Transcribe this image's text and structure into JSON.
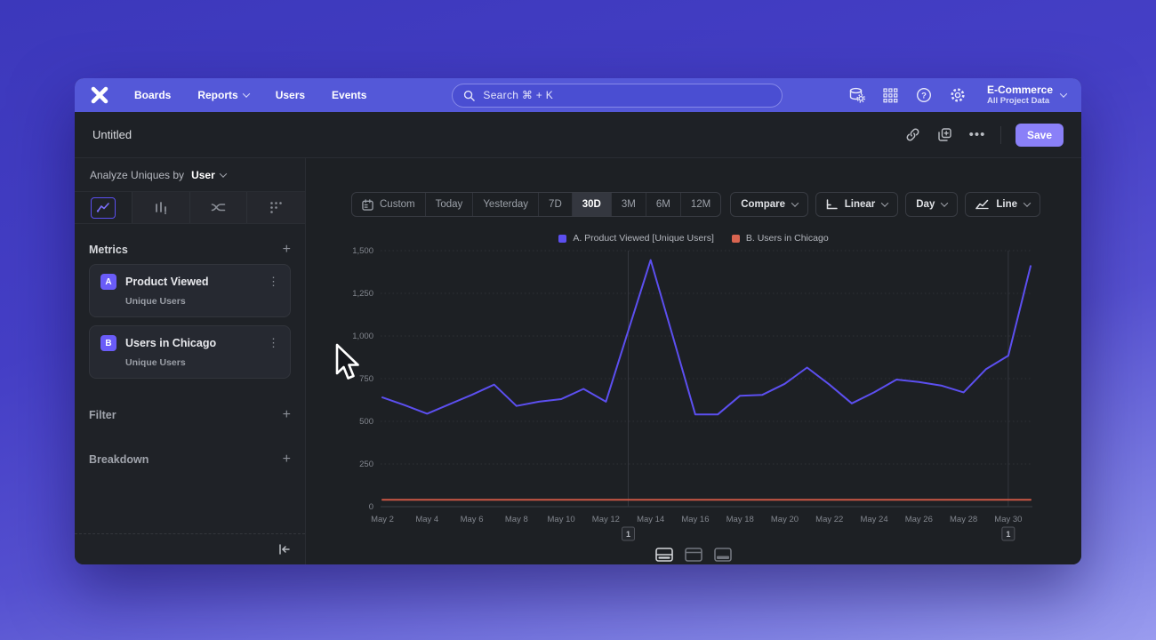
{
  "nav": {
    "items": [
      "Boards",
      "Reports",
      "Users",
      "Events"
    ],
    "search": {
      "placeholder": "Search  ⌘ + K"
    },
    "project": {
      "name": "E-Commerce",
      "subtitle": "All Project Data"
    }
  },
  "header": {
    "title": "Untitled",
    "save_label": "Save"
  },
  "sidebar": {
    "analyze": {
      "prefix": "Analyze Uniques by",
      "value": "User"
    },
    "sections": {
      "metrics": "Metrics",
      "filter": "Filter",
      "breakdown": "Breakdown"
    },
    "metrics": [
      {
        "badge": "A",
        "title": "Product Viewed",
        "subtitle": "Unique Users"
      },
      {
        "badge": "B",
        "title": "Users in Chicago",
        "subtitle": "Unique Users"
      }
    ]
  },
  "toolbar": {
    "ranges": [
      "Custom",
      "Today",
      "Yesterday",
      "7D",
      "30D",
      "3M",
      "6M",
      "12M"
    ],
    "selected_range": "30D",
    "compare": "Compare",
    "scale": "Linear",
    "interval": "Day",
    "chart_type": "Line"
  },
  "legend": [
    {
      "label": "A. Product Viewed [Unique Users]",
      "color": "#5c4ff0"
    },
    {
      "label": "B. Users in Chicago",
      "color": "#d96450"
    }
  ],
  "annotations": [
    {
      "label": "1",
      "x": "May 13"
    },
    {
      "label": "1",
      "x": "May 30"
    }
  ],
  "chart_data": {
    "type": "line",
    "title": "",
    "xlabel": "",
    "ylabel": "",
    "x": [
      "May 2",
      "May 3",
      "May 4",
      "May 5",
      "May 6",
      "May 7",
      "May 8",
      "May 9",
      "May 10",
      "May 11",
      "May 12",
      "May 13",
      "May 14",
      "May 15",
      "May 16",
      "May 17",
      "May 18",
      "May 19",
      "May 20",
      "May 21",
      "May 22",
      "May 23",
      "May 24",
      "May 25",
      "May 26",
      "May 27",
      "May 28",
      "May 29",
      "May 30",
      "May 31"
    ],
    "x_tick_labels": [
      "May 2",
      "May 4",
      "May 6",
      "May 8",
      "May 10",
      "May 12",
      "May 14",
      "May 16",
      "May 18",
      "May 20",
      "May 22",
      "May 24",
      "May 26",
      "May 28",
      "May 30"
    ],
    "series": [
      {
        "name": "A. Product Viewed [Unique Users]",
        "color": "#5c4ff0",
        "values": [
          640,
          595,
          545,
          600,
          655,
          715,
          590,
          615,
          630,
          690,
          615,
          1030,
          1445,
          995,
          540,
          540,
          650,
          655,
          720,
          815,
          715,
          605,
          670,
          745,
          730,
          710,
          670,
          805,
          885,
          1410
        ]
      },
      {
        "name": "B. Users in Chicago",
        "color": "#cc5744",
        "values": [
          40,
          40,
          40,
          40,
          40,
          40,
          40,
          40,
          40,
          40,
          40,
          40,
          40,
          40,
          40,
          40,
          40,
          40,
          40,
          40,
          40,
          40,
          40,
          40,
          40,
          40,
          40,
          40,
          40,
          40
        ]
      }
    ],
    "ylim": [
      0,
      1500
    ],
    "y_ticks": [
      0,
      250,
      500,
      750,
      1000,
      1250,
      1500
    ],
    "grid": true,
    "legend_position": "top"
  }
}
